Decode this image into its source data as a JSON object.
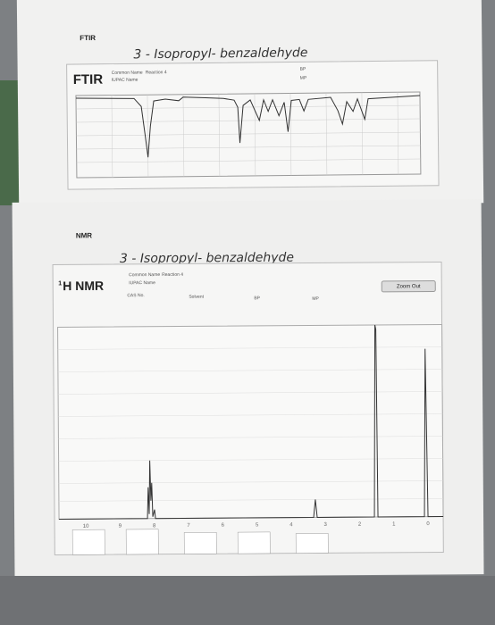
{
  "ftir_page": {
    "heading": "FTIR",
    "handwritten_title": "3 - Isopropyl- benzaldehyde",
    "chart_label": "FTIR",
    "common_name_label": "Common Name",
    "reaction": "Reaction 4",
    "iupac_label": "IUPAC Name",
    "bp_label": "BP",
    "mp_label": "MP"
  },
  "nmr_page": {
    "heading": "NMR",
    "handwritten_title": "3 - Isopropyl- benzaldehyde",
    "chart_label_sup": "1",
    "chart_label": "H NMR",
    "common_name_label": "Common Name",
    "reaction": "Reaction 4",
    "iupac_label": "IUPAC Name",
    "cas_label": "CAS No.",
    "solvent_label": "Solvent",
    "bp_label": "BP",
    "mp_label": "MP",
    "zoom_button": "Zoom Out",
    "x_tick_labels": [
      "10",
      "9",
      "8",
      "7",
      "6",
      "5",
      "4",
      "3",
      "2",
      "1",
      "0"
    ]
  }
}
